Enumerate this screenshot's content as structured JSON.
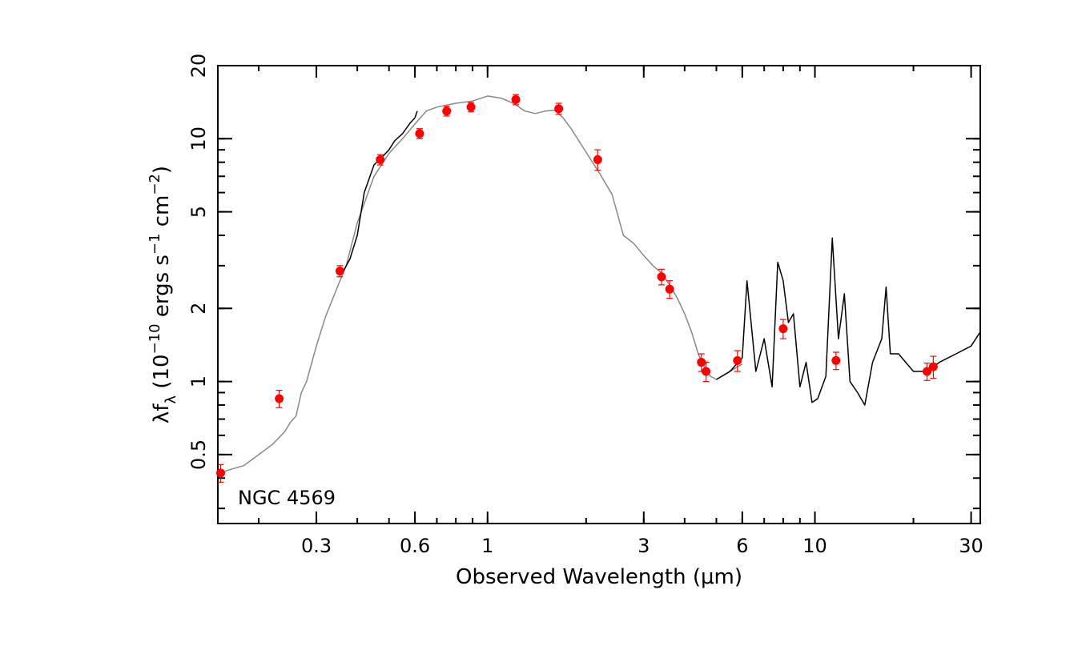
{
  "chart_data": {
    "type": "scatter",
    "title": "",
    "annotation": "NGC 4569",
    "xlabel": "Observed Wavelength (μm)",
    "ylabel": {
      "prefix": "λf",
      "sub": "λ",
      "open": " (10",
      "exp1": "−10",
      "mid": " ergs s",
      "exp2": "−1",
      "mid2": " cm",
      "exp3": "−2",
      "close": ")"
    },
    "xscale": "log",
    "yscale": "log",
    "xlim": [
      0.15,
      32
    ],
    "ylim": [
      0.26,
      20
    ],
    "xticks_labeled": [
      {
        "value": 0.3,
        "label": "0.3"
      },
      {
        "value": 0.6,
        "label": "0.6"
      },
      {
        "value": 1,
        "label": "1"
      },
      {
        "value": 3,
        "label": "3"
      },
      {
        "value": 6,
        "label": "6"
      },
      {
        "value": 10,
        "label": "10"
      },
      {
        "value": 30,
        "label": "30"
      }
    ],
    "yticks_labeled": [
      {
        "value": 0.5,
        "label": "0.5"
      },
      {
        "value": 1,
        "label": "1"
      },
      {
        "value": 2,
        "label": "2"
      },
      {
        "value": 5,
        "label": "5"
      },
      {
        "value": 10,
        "label": "10"
      },
      {
        "value": 20,
        "label": "20"
      }
    ],
    "series": [
      {
        "kind": "model-spectrum",
        "color": "#888888",
        "x": [
          0.15,
          0.16,
          0.18,
          0.2,
          0.22,
          0.24,
          0.25,
          0.26,
          0.27,
          0.28,
          0.3,
          0.32,
          0.35,
          0.37,
          0.4,
          0.45,
          0.5,
          0.55,
          0.6,
          0.65,
          0.7,
          0.8,
          0.9,
          1.0,
          1.1,
          1.2,
          1.3,
          1.4,
          1.5,
          1.6,
          1.7,
          1.8,
          2.0,
          2.2,
          2.4,
          2.6,
          2.8,
          3.0,
          3.2,
          3.4,
          3.6,
          3.8,
          4.0,
          4.2,
          4.4,
          4.6,
          4.8,
          5.0,
          5.2,
          5.5,
          6.0
        ],
        "y": [
          0.41,
          0.43,
          0.45,
          0.5,
          0.55,
          0.62,
          0.68,
          0.72,
          0.9,
          1.0,
          1.4,
          1.85,
          2.5,
          3.0,
          4.5,
          7.0,
          8.7,
          10.0,
          11.5,
          13.0,
          13.5,
          14.0,
          14.3,
          15.0,
          14.7,
          14.0,
          13.0,
          12.7,
          13.0,
          13.1,
          12.2,
          11.0,
          8.8,
          7.2,
          5.9,
          4.0,
          3.7,
          3.3,
          3.0,
          2.8,
          2.5,
          2.2,
          1.9,
          1.6,
          1.3,
          1.15,
          1.05,
          1.02,
          1.05,
          1.1,
          1.18
        ]
      },
      {
        "kind": "observed-optical",
        "color": "#000000",
        "x": [
          0.36,
          0.38,
          0.4,
          0.42,
          0.45,
          0.48,
          0.5,
          0.52,
          0.55,
          0.58,
          0.6,
          0.61
        ],
        "y": [
          2.8,
          3.2,
          4.0,
          6.0,
          7.8,
          8.5,
          9.0,
          9.8,
          10.5,
          11.6,
          12.2,
          13.0
        ]
      },
      {
        "kind": "observed-ir",
        "color": "#000000",
        "x": [
          5.0,
          5.5,
          6.0,
          6.2,
          6.6,
          7.0,
          7.4,
          7.7,
          8.0,
          8.3,
          8.6,
          9.0,
          9.4,
          9.8,
          10.2,
          10.8,
          11.3,
          11.8,
          12.3,
          12.8,
          13.5,
          14.2,
          15.0,
          16.0,
          16.5,
          17.0,
          18.0,
          20.0,
          22.0,
          24.0,
          27.0,
          30.0,
          32.0
        ],
        "y": [
          1.02,
          1.1,
          1.25,
          2.6,
          1.1,
          1.5,
          0.95,
          3.1,
          2.6,
          1.75,
          1.9,
          0.95,
          1.2,
          0.82,
          0.85,
          1.05,
          3.9,
          1.5,
          2.3,
          1.0,
          0.9,
          0.8,
          1.2,
          1.5,
          2.45,
          1.3,
          1.3,
          1.1,
          1.1,
          1.2,
          1.3,
          1.4,
          1.6
        ]
      }
    ],
    "photometry": {
      "color": "#ff0000",
      "points": [
        {
          "x": 0.153,
          "y": 0.42,
          "err": 0.035
        },
        {
          "x": 0.231,
          "y": 0.85,
          "err": 0.07
        },
        {
          "x": 0.354,
          "y": 2.85,
          "err": 0.15
        },
        {
          "x": 0.47,
          "y": 8.2,
          "err": 0.4
        },
        {
          "x": 0.62,
          "y": 10.5,
          "err": 0.5
        },
        {
          "x": 0.75,
          "y": 13.0,
          "err": 0.6
        },
        {
          "x": 0.89,
          "y": 13.5,
          "err": 0.6
        },
        {
          "x": 1.22,
          "y": 14.5,
          "err": 0.7
        },
        {
          "x": 1.65,
          "y": 13.3,
          "err": 0.7
        },
        {
          "x": 2.17,
          "y": 8.2,
          "err": 0.8
        },
        {
          "x": 3.4,
          "y": 2.7,
          "err": 0.2
        },
        {
          "x": 3.6,
          "y": 2.4,
          "err": 0.2
        },
        {
          "x": 4.5,
          "y": 1.2,
          "err": 0.1
        },
        {
          "x": 4.65,
          "y": 1.1,
          "err": 0.1
        },
        {
          "x": 5.8,
          "y": 1.22,
          "err": 0.12
        },
        {
          "x": 8.0,
          "y": 1.65,
          "err": 0.15
        },
        {
          "x": 11.6,
          "y": 1.22,
          "err": 0.1
        },
        {
          "x": 22.0,
          "y": 1.1,
          "err": 0.09
        },
        {
          "x": 23.0,
          "y": 1.15,
          "err": 0.12
        }
      ]
    },
    "grid": false,
    "legend": "none"
  }
}
